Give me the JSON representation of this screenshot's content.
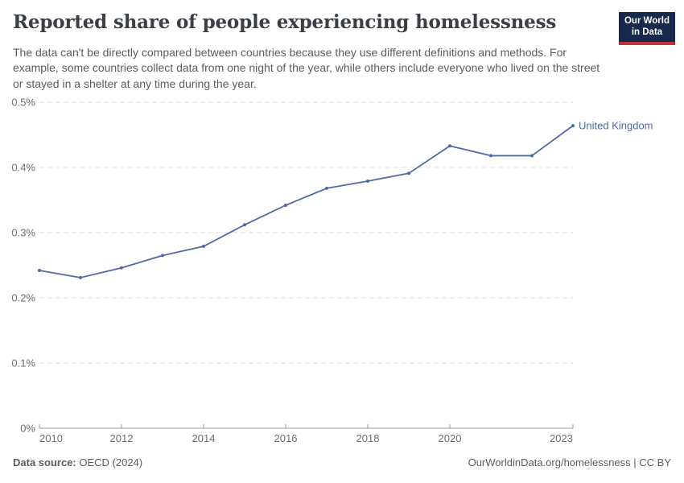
{
  "header": {
    "title": "Reported share of people experiencing homelessness",
    "subtitle": "The data can't be directly compared between countries because they use different definitions and methods. For example, some countries collect data from one night of the year, while others include everyone who lived on the street or stayed in a shelter at any time during the year.",
    "logo": {
      "line1": "Our World",
      "line2": "in Data"
    }
  },
  "chart_data": {
    "type": "line",
    "title": "Reported share of people experiencing homelessness",
    "x": [
      2010,
      2011,
      2012,
      2013,
      2014,
      2015,
      2016,
      2017,
      2018,
      2019,
      2020,
      2021,
      2022,
      2023
    ],
    "series": [
      {
        "name": "United Kingdom",
        "color": "#4c6ba8",
        "values": [
          0.242,
          0.231,
          0.246,
          0.265,
          0.279,
          0.312,
          0.342,
          0.368,
          0.379,
          0.391,
          0.433,
          0.418,
          0.418,
          0.464
        ]
      }
    ],
    "xlabel": "",
    "ylabel": "",
    "unit": "%",
    "xlim": [
      2010,
      2023
    ],
    "ylim": [
      0,
      0.5
    ],
    "x_ticks": [
      2010,
      2012,
      2014,
      2016,
      2018,
      2020,
      2023
    ],
    "y_ticks": [
      {
        "value": 0,
        "label": "0%"
      },
      {
        "value": 0.1,
        "label": "0.1%"
      },
      {
        "value": 0.2,
        "label": "0.2%"
      },
      {
        "value": 0.3,
        "label": "0.3%"
      },
      {
        "value": 0.4,
        "label": "0.4%"
      },
      {
        "value": 0.5,
        "label": "0.5%"
      }
    ],
    "grid": "horizontal-dashed",
    "legend_position": "end-of-line-label",
    "end_label": "United Kingdom"
  },
  "footer": {
    "source_label": "Data source:",
    "source_value": " OECD (2024)",
    "attribution": "OurWorldinData.org/homelessness | CC BY"
  },
  "colors": {
    "line": "#4c6ba8",
    "grid": "#dcdcdc",
    "axis": "#9a9a9a",
    "axis_text": "#6e6e6e",
    "title_text": "#3a3f46",
    "body_text": "#5c5c5c",
    "logo_bg": "#17294d",
    "logo_accent": "#c2333c"
  }
}
